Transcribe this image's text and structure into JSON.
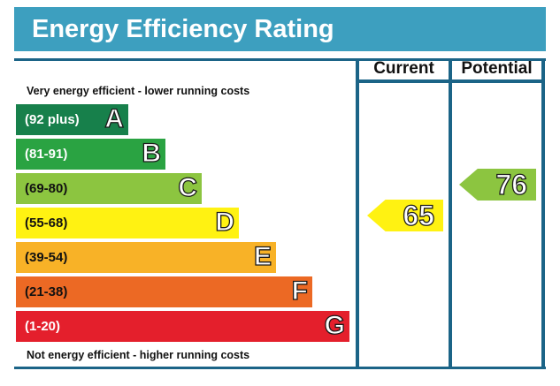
{
  "title": "Energy Efficiency Rating",
  "columns": {
    "current": "Current",
    "potential": "Potential"
  },
  "top_note": "Very energy efficient - lower running costs",
  "bottom_note": "Not energy efficient - higher running costs",
  "bands": [
    {
      "letter": "A",
      "range": "(92 plus)",
      "color": "#17804b",
      "text_color": "#ffffff"
    },
    {
      "letter": "B",
      "range": "(81-91)",
      "color": "#2aa342",
      "text_color": "#ffffff"
    },
    {
      "letter": "C",
      "range": "(69-80)",
      "color": "#8cc540",
      "text_color": "#111111"
    },
    {
      "letter": "D",
      "range": "(55-68)",
      "color": "#fff212",
      "text_color": "#111111"
    },
    {
      "letter": "E",
      "range": "(39-54)",
      "color": "#f8b227",
      "text_color": "#111111"
    },
    {
      "letter": "F",
      "range": "(21-38)",
      "color": "#ec6924",
      "text_color": "#111111"
    },
    {
      "letter": "G",
      "range": "(1-20)",
      "color": "#e41f2c",
      "text_color": "#ffffff"
    }
  ],
  "current": {
    "value": "65",
    "band": "D",
    "color": "#fff212"
  },
  "potential": {
    "value": "76",
    "band": "C",
    "color": "#8cc540"
  }
}
